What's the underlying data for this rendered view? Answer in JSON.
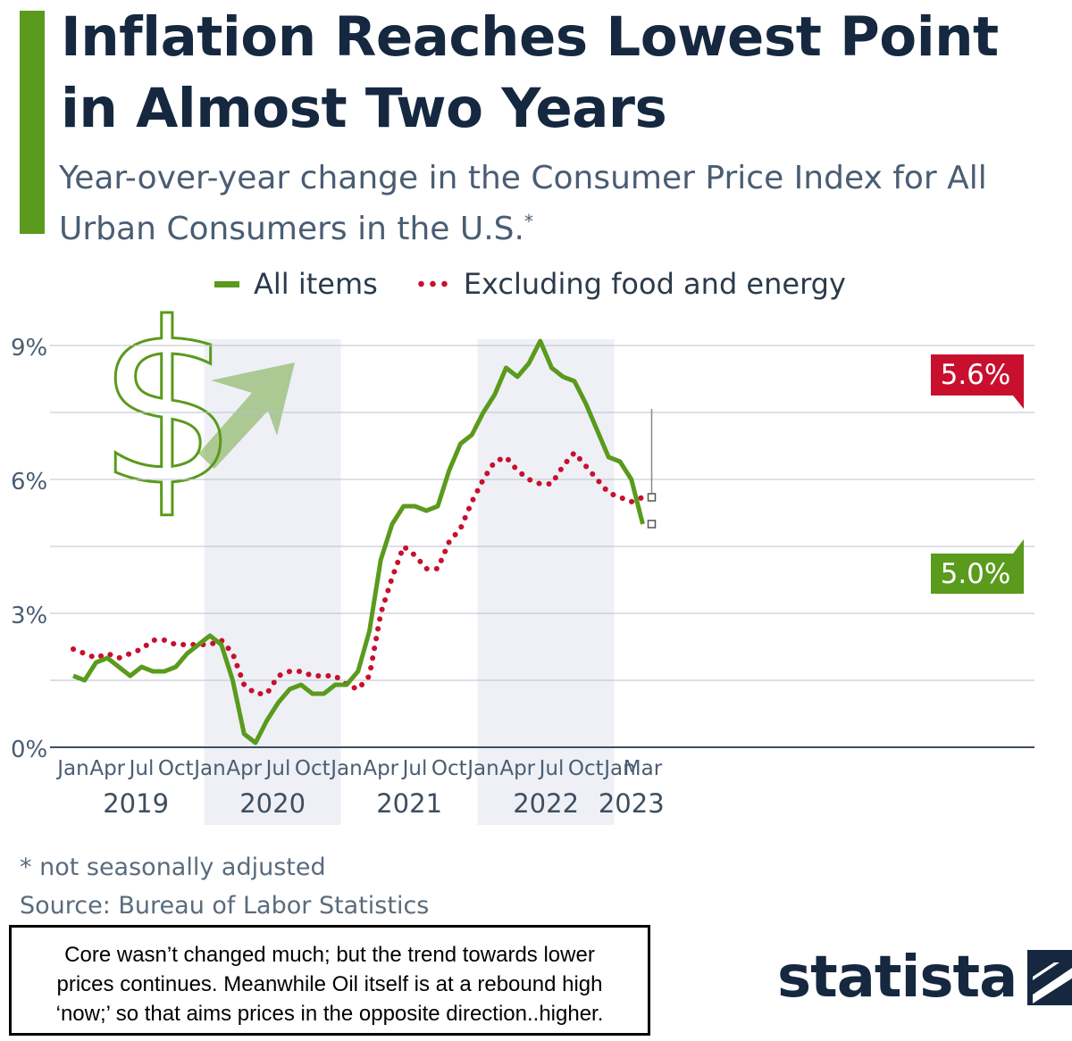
{
  "header": {
    "title": "Inflation Reaches Lowest Point in Almost Two Years",
    "subtitle": "Year-over-year change in the Consumer Price Index for All Urban Consumers in the U.S.",
    "subtitle_mark": "*"
  },
  "legend": {
    "all_items": "All items",
    "core": "Excluding food and energy"
  },
  "colors": {
    "accent": "#5a9a1c",
    "all_items": "#5a9a1c",
    "core": "#c8102e",
    "band": "#eef0f6",
    "title": "#152840"
  },
  "decoration": {
    "icons": [
      "dollar-sign-icon",
      "up-arrow-icon"
    ]
  },
  "chart_data": {
    "type": "line",
    "y_ticks": [
      "0%",
      "3%",
      "6%",
      "9%"
    ],
    "ylim": [
      0,
      9
    ],
    "grid": true,
    "legend_position": "top",
    "month_ticks": [
      {
        "label": "Jan",
        "index": 0
      },
      {
        "label": "Apr",
        "index": 3
      },
      {
        "label": "Jul",
        "index": 6
      },
      {
        "label": "Oct",
        "index": 9
      },
      {
        "label": "Jan",
        "index": 12
      },
      {
        "label": "Apr",
        "index": 15
      },
      {
        "label": "Jul",
        "index": 18
      },
      {
        "label": "Oct",
        "index": 21
      },
      {
        "label": "Jan",
        "index": 24
      },
      {
        "label": "Apr",
        "index": 27
      },
      {
        "label": "Jul",
        "index": 30
      },
      {
        "label": "Oct",
        "index": 33
      },
      {
        "label": "Jan",
        "index": 36
      },
      {
        "label": "Apr",
        "index": 39
      },
      {
        "label": "Jul",
        "index": 42
      },
      {
        "label": "Oct",
        "index": 45
      },
      {
        "label": "Jan",
        "index": 48
      },
      {
        "label": "Mar",
        "index": 50
      }
    ],
    "years": [
      {
        "label": "2019",
        "start": 0,
        "end": 11
      },
      {
        "label": "2020",
        "start": 12,
        "end": 23
      },
      {
        "label": "2021",
        "start": 24,
        "end": 35
      },
      {
        "label": "2022",
        "start": 36,
        "end": 47
      },
      {
        "label": "2023",
        "start": 48,
        "end": 50
      }
    ],
    "series": [
      {
        "name": "All items",
        "style": "solid",
        "values": [
          1.6,
          1.5,
          1.9,
          2.0,
          1.8,
          1.6,
          1.8,
          1.7,
          1.7,
          1.8,
          2.1,
          2.3,
          2.5,
          2.3,
          1.5,
          0.3,
          0.1,
          0.6,
          1.0,
          1.3,
          1.4,
          1.2,
          1.2,
          1.4,
          1.4,
          1.7,
          2.6,
          4.2,
          5.0,
          5.4,
          5.4,
          5.3,
          5.4,
          6.2,
          6.8,
          7.0,
          7.5,
          7.9,
          8.5,
          8.3,
          8.6,
          9.1,
          8.5,
          8.3,
          8.2,
          7.7,
          7.1,
          6.5,
          6.4,
          6.0,
          5.0
        ]
      },
      {
        "name": "Excluding food and energy",
        "style": "dotted",
        "values": [
          2.2,
          2.1,
          2.0,
          2.1,
          2.0,
          2.1,
          2.2,
          2.4,
          2.4,
          2.3,
          2.3,
          2.3,
          2.3,
          2.4,
          2.1,
          1.4,
          1.2,
          1.2,
          1.6,
          1.7,
          1.7,
          1.6,
          1.6,
          1.6,
          1.4,
          1.3,
          1.6,
          3.0,
          3.8,
          4.5,
          4.3,
          4.0,
          4.0,
          4.6,
          4.9,
          5.5,
          6.0,
          6.4,
          6.5,
          6.2,
          6.0,
          5.9,
          5.9,
          6.3,
          6.6,
          6.3,
          6.0,
          5.7,
          5.6,
          5.5,
          5.6
        ]
      }
    ],
    "end_labels": [
      {
        "series": "Excluding food and energy",
        "text": "5.6%"
      },
      {
        "series": "All items",
        "text": "5.0%"
      }
    ]
  },
  "footer": {
    "footnote": "* not seasonally adjusted",
    "source": "Source: Bureau of Labor Statistics",
    "brand": "statista"
  },
  "note": {
    "line1": "Core wasn’t changed much; but the trend towards lower",
    "line2": "prices continues. Meanwhile Oil itself is at a rebound high",
    "line3": "‘now;’ so that aims prices in the opposite direction..higher."
  }
}
